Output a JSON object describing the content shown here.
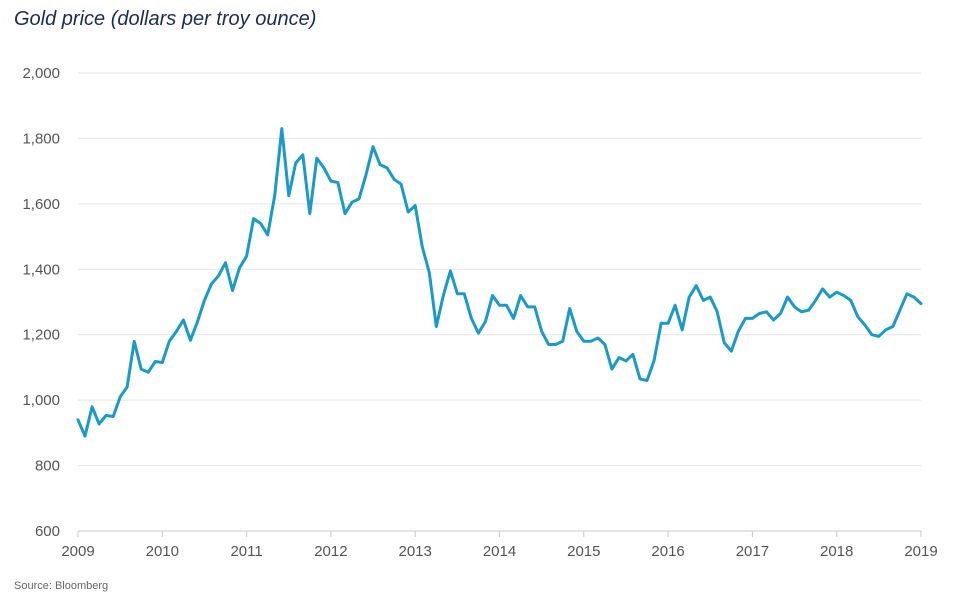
{
  "chart_data": {
    "type": "line",
    "title": "Gold price (dollars per troy ounce)",
    "source": "Source: Bloomberg",
    "ylim": [
      600,
      2000
    ],
    "yticks": [
      600,
      800,
      1000,
      1200,
      1400,
      1600,
      1800,
      2000
    ],
    "ytick_labels": [
      "600",
      "800",
      "1,000",
      "1,200",
      "1,400",
      "1,600",
      "1,800",
      "2,000"
    ],
    "xlim": [
      2009.0,
      2019.0
    ],
    "xticks": [
      2009,
      2010,
      2011,
      2012,
      2013,
      2014,
      2015,
      2016,
      2017,
      2018,
      2019
    ],
    "xtick_labels": [
      "2009",
      "2010",
      "2011",
      "2012",
      "2013",
      "2014",
      "2015",
      "2016",
      "2017",
      "2018",
      "2019"
    ],
    "grid": "horizontal",
    "line_color": "#1a9ac9",
    "grid_color": "#e3e3e3",
    "axis_color": "#c8c8c8",
    "series": [
      {
        "name": "",
        "x": [
          2009.0,
          2009.083,
          2009.167,
          2009.25,
          2009.333,
          2009.417,
          2009.5,
          2009.583,
          2009.667,
          2009.75,
          2009.833,
          2009.917,
          2010.0,
          2010.083,
          2010.167,
          2010.25,
          2010.333,
          2010.417,
          2010.5,
          2010.583,
          2010.667,
          2010.75,
          2010.833,
          2010.917,
          2011.0,
          2011.083,
          2011.167,
          2011.25,
          2011.333,
          2011.417,
          2011.5,
          2011.583,
          2011.667,
          2011.75,
          2011.833,
          2011.917,
          2012.0,
          2012.083,
          2012.167,
          2012.25,
          2012.333,
          2012.417,
          2012.5,
          2012.583,
          2012.667,
          2012.75,
          2012.833,
          2012.917,
          2013.0,
          2013.083,
          2013.167,
          2013.25,
          2013.333,
          2013.417,
          2013.5,
          2013.583,
          2013.667,
          2013.75,
          2013.833,
          2013.917,
          2014.0,
          2014.083,
          2014.167,
          2014.25,
          2014.333,
          2014.417,
          2014.5,
          2014.583,
          2014.667,
          2014.75,
          2014.833,
          2014.917,
          2015.0,
          2015.083,
          2015.167,
          2015.25,
          2015.333,
          2015.417,
          2015.5,
          2015.583,
          2015.667,
          2015.75,
          2015.833,
          2015.917,
          2016.0,
          2016.083,
          2016.167,
          2016.25,
          2016.333,
          2016.417,
          2016.5,
          2016.583,
          2016.667,
          2016.75,
          2016.833,
          2016.917,
          2017.0,
          2017.083,
          2017.167,
          2017.25,
          2017.333,
          2017.417,
          2017.5,
          2017.583,
          2017.667,
          2017.75,
          2017.833,
          2017.917,
          2018.0,
          2018.083,
          2018.167,
          2018.25,
          2018.333,
          2018.417,
          2018.5,
          2018.583,
          2018.667,
          2018.75,
          2018.833,
          2018.917,
          2019.0
        ],
        "y": [
          940,
          890,
          980,
          927,
          953,
          950,
          1010,
          1040,
          1180,
          1095,
          1085,
          1118,
          1115,
          1180,
          1210,
          1245,
          1183,
          1240,
          1305,
          1355,
          1380,
          1420,
          1335,
          1405,
          1440,
          1555,
          1540,
          1505,
          1625,
          1830,
          1625,
          1725,
          1750,
          1570,
          1740,
          1710,
          1670,
          1665,
          1570,
          1605,
          1615,
          1690,
          1775,
          1720,
          1710,
          1675,
          1660,
          1575,
          1595,
          1470,
          1390,
          1225,
          1320,
          1395,
          1325,
          1325,
          1250,
          1205,
          1240,
          1320,
          1290,
          1290,
          1250,
          1320,
          1285,
          1285,
          1210,
          1170,
          1170,
          1180,
          1280,
          1210,
          1180,
          1180,
          1190,
          1170,
          1095,
          1130,
          1120,
          1140,
          1065,
          1060,
          1120,
          1235,
          1235,
          1290,
          1215,
          1315,
          1350,
          1305,
          1315,
          1270,
          1175,
          1150,
          1210,
          1250,
          1250,
          1265,
          1270,
          1245,
          1265,
          1315,
          1285,
          1270,
          1275,
          1305,
          1340,
          1315,
          1330,
          1320,
          1305,
          1255,
          1230,
          1200,
          1195,
          1215,
          1225,
          1275,
          1325,
          1315,
          1295
        ]
      }
    ]
  }
}
